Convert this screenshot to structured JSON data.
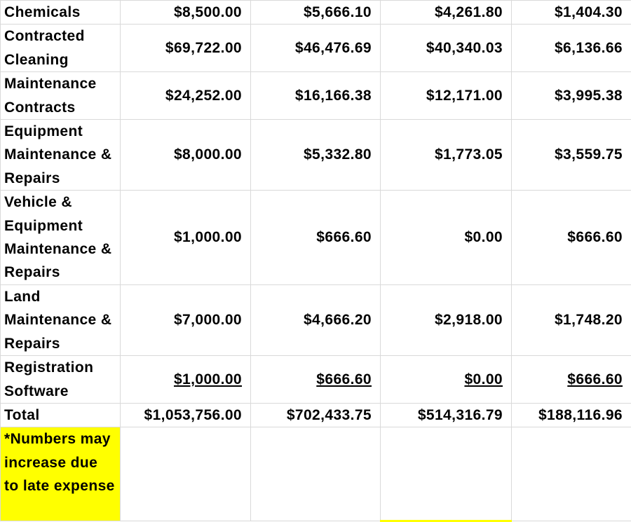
{
  "rows": [
    {
      "label": "Chemicals",
      "values": [
        "$8,500.00",
        "$5,666.10",
        "$4,261.80",
        "$1,404.30"
      ]
    },
    {
      "label": "Contracted Cleaning",
      "values": [
        "$69,722.00",
        "$46,476.69",
        "$40,340.03",
        "$6,136.66"
      ]
    },
    {
      "label": "Maintenance Contracts",
      "values": [
        "$24,252.00",
        "$16,166.38",
        "$12,171.00",
        "$3,995.38"
      ]
    },
    {
      "label": "Equipment Maintenance & Repairs",
      "values": [
        "$8,000.00",
        "$5,332.80",
        "$1,773.05",
        "$3,559.75"
      ]
    },
    {
      "label": "Vehicle & Equipment Maintenance & Repairs",
      "values": [
        "$1,000.00",
        "$666.60",
        "$0.00",
        "$666.60"
      ]
    },
    {
      "label": "Land Maintenance & Repairs",
      "values": [
        "$7,000.00",
        "$4,666.20",
        "$2,918.00",
        "$1,748.20"
      ]
    },
    {
      "label": "Registration Software",
      "values": [
        "$1,000.00",
        "$666.60",
        "$0.00",
        "$666.60"
      ]
    },
    {
      "label": "Total",
      "values": [
        "$1,053,756.00",
        "$702,433.75",
        "$514,316.79",
        "$188,116.96"
      ]
    }
  ],
  "note": "*Numbers may increase due to late expense",
  "colors": {
    "highlight": "#ffff00",
    "grid": "#d9d9d9"
  }
}
